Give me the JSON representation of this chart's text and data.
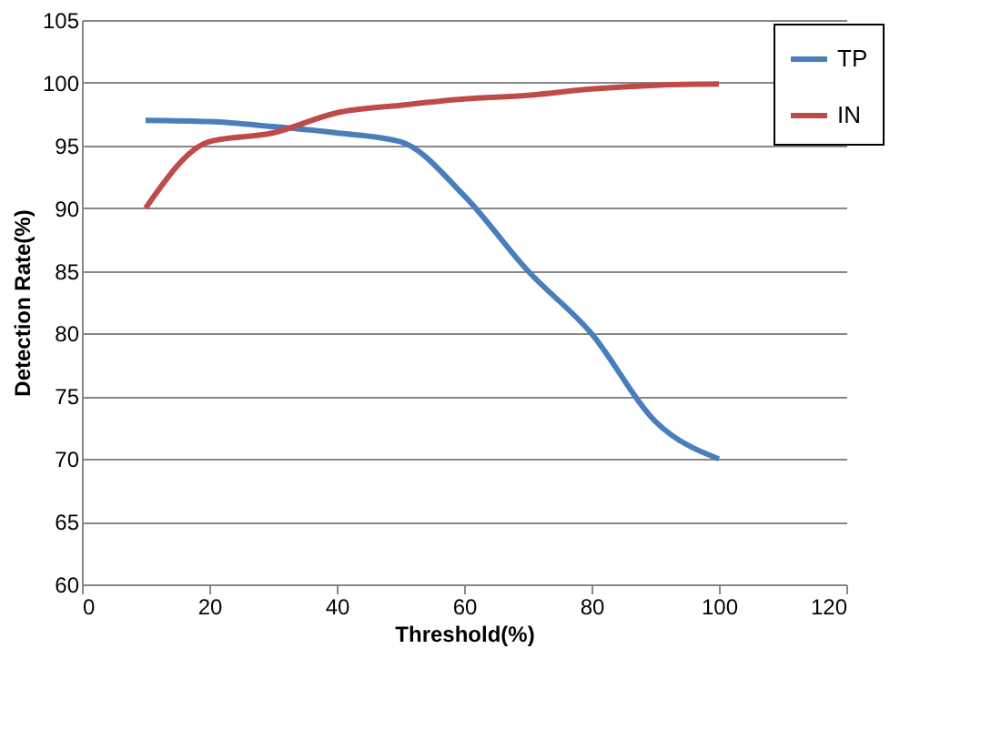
{
  "chart_data": {
    "type": "line",
    "xlabel": "Threshold(%)",
    "ylabel": "Detection Rate(%)",
    "x": [
      10,
      20,
      30,
      40,
      50,
      60,
      70,
      80,
      90,
      100
    ],
    "series": [
      {
        "name": "TP",
        "color": "#4a7ebb",
        "values": [
          97,
          96.9,
          96.5,
          96,
          95.3,
          91,
          85,
          80,
          73,
          70
        ]
      },
      {
        "name": "IN",
        "color": "#be4b48",
        "values": [
          90,
          95.3,
          96,
          97.6,
          98.2,
          98.7,
          99,
          99.5,
          99.8,
          99.9
        ]
      }
    ],
    "xlim": [
      0,
      120
    ],
    "xticks": [
      0,
      20,
      40,
      60,
      80,
      100,
      120
    ],
    "ylim": [
      60,
      105
    ],
    "yticks": [
      60,
      65,
      70,
      75,
      80,
      85,
      90,
      95,
      100,
      105
    ],
    "grid": "y",
    "legend": "top right",
    "marker": "none",
    "line_style": "solid"
  }
}
